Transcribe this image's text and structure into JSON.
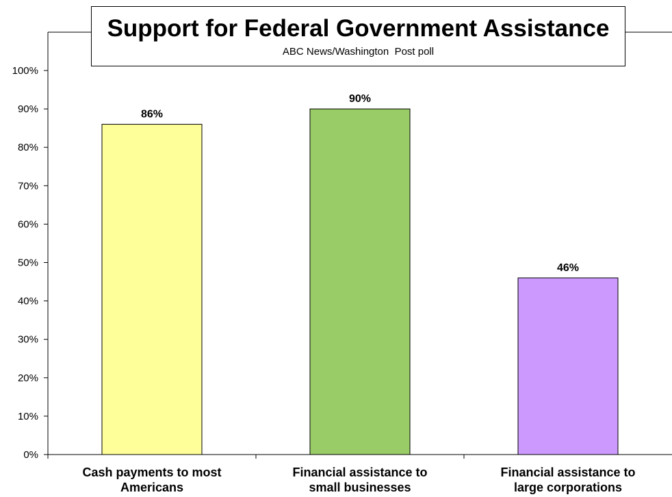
{
  "chart_data": {
    "type": "bar",
    "title": "Support for Federal Government Assistance",
    "subtitle": "ABC News/Washington  Post poll",
    "categories": [
      "Cash payments to most Americans",
      "Financial assistance to small businesses",
      "Financial assistance to large corporations"
    ],
    "category_label_lines": [
      [
        "Cash payments to most",
        "Americans"
      ],
      [
        "Financial assistance to",
        "small businesses"
      ],
      [
        "Financial assistance to",
        "large corporations"
      ]
    ],
    "values": [
      86,
      90,
      46
    ],
    "data_labels": [
      "86%",
      "90%",
      "46%"
    ],
    "colors": [
      "#ffff99",
      "#99cc66",
      "#cc99ff"
    ],
    "ylim": [
      0,
      100
    ],
    "yticks": [
      0,
      10,
      20,
      30,
      40,
      50,
      60,
      70,
      80,
      90,
      100
    ],
    "ytick_labels": [
      "0%",
      "10%",
      "20%",
      "30%",
      "40%",
      "50%",
      "60%",
      "70%",
      "80%",
      "90%",
      "100%"
    ],
    "xlabel": "",
    "ylabel": "",
    "grid": false,
    "legend": "none"
  }
}
